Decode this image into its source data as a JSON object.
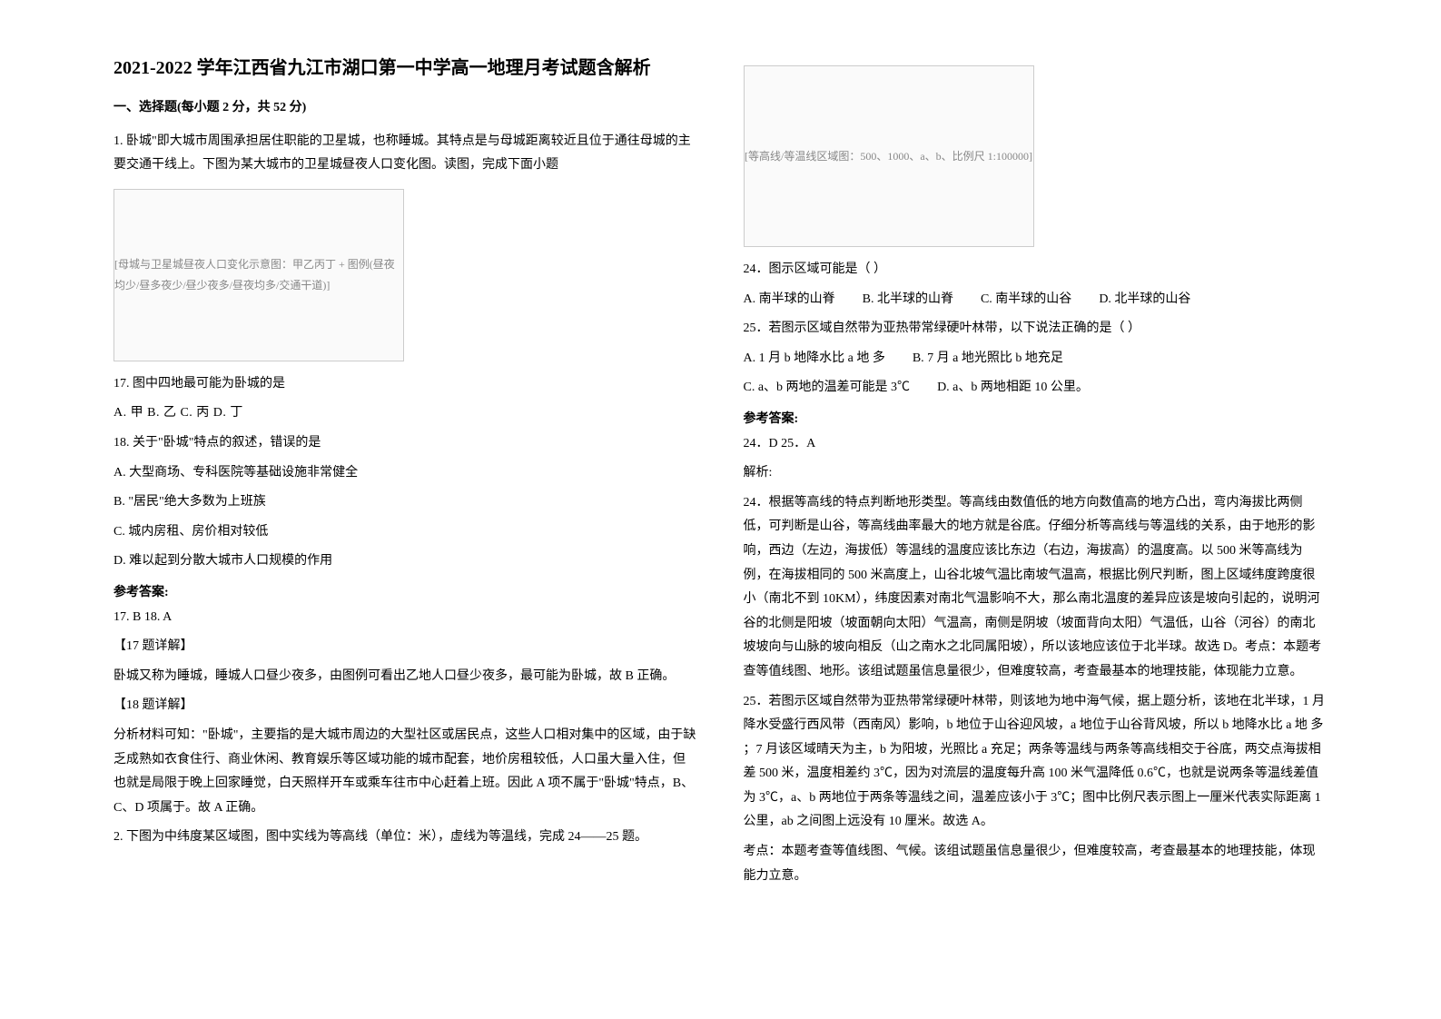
{
  "left": {
    "title": "2021-2022 学年江西省九江市湖口第一中学高一地理月考试题含解析",
    "section1_header": "一、选择题(每小题 2 分，共 52 分)",
    "q1_intro": "1. 卧城\"即大城市周围承担居住职能的卫星城，也称睡城。其特点是与母城距离较近且位于通往母城的主要交通干线上。下图为某大城市的卫星城昼夜人口变化图。读图，完成下面小题",
    "fig1_label": "[母城与卫星城昼夜人口变化示意图：甲乙丙丁 + 图例(昼夜均少/昼多夜少/昼少夜多/昼夜均多/交通干道)]",
    "q17_stem": "17. 图中四地最可能为卧城的是",
    "q17_options": "A. 甲  B. 乙  C. 丙  D. 丁",
    "q18_stem": "18. 关于\"卧城\"特点的叙述，错误的是",
    "q18_a": "A. 大型商场、专科医院等基础设施非常健全",
    "q18_b": "B. \"居民\"绝大多数为上班族",
    "q18_c": "C. 城内房租、房价相对较低",
    "q18_d": "D. 难以起到分散大城市人口规模的作用",
    "ref_ans_label": "参考答案:",
    "ans_17_18": "17. B        18. A",
    "exp17_label": "【17 题详解】",
    "exp17_text": "卧城又称为睡城，睡城人口昼少夜多，由图例可看出乙地人口昼少夜多，最可能为卧城，故 B 正确。",
    "exp18_label": "【18 题详解】",
    "exp18_text": "分析材料可知：\"卧城\"，主要指的是大城市周边的大型社区或居民点，这些人口相对集中的区域，由于缺乏成熟如衣食住行、商业休闲、教育娱乐等区域功能的城市配套，地价房租较低，人口虽大量入住，但也就是局限于晚上回家睡觉，白天照样开车或乘车往市中心赶着上班。因此 A 项不属于\"卧城\"特点，B、C、D 项属于。故 A 正确。",
    "q2_intro": "2. 下图为中纬度某区域图，图中实线为等高线（单位：米），虚线为等温线，完成 24——25 题。"
  },
  "right": {
    "fig2_label": "[等高线/等温线区域图：500、1000、a、b、比例尺 1:100000]",
    "q24_stem": "24．图示区域可能是（      ）",
    "q24_a": "A. 南半球的山脊",
    "q24_b": "B. 北半球的山脊",
    "q24_c": "C. 南半球的山谷",
    "q24_d": "D. 北半球的山谷",
    "q25_stem": "25．若图示区域自然带为亚热带常绿硬叶林带，以下说法正确的是（      ）",
    "q25_a": "A. 1 月 b 地降水比 a 地 多",
    "q25_b": "B. 7 月 a 地光照比 b 地充足",
    "q25_c": "C. a、b 两地的温差可能是 3℃",
    "q25_d": "D. a、b 两地相距 10 公里。",
    "ref_ans_label": "参考答案:",
    "ans_24_25": "24．D       25．A",
    "jiexi_label": "解析:",
    "exp24_text": "24．根据等高线的特点判断地形类型。等高线由数值低的地方向数值高的地方凸出，弯内海拔比两侧低，可判断是山谷，等高线曲率最大的地方就是谷底。仔细分析等高线与等温线的关系，由于地形的影响，西边（左边，海拔低）等温线的温度应该比东边（右边，海拔高）的温度高。以 500 米等高线为例，在海拔相同的 500 米高度上，山谷北坡气温比南坡气温高，根据比例尺判断，图上区域纬度跨度很小（南北不到 10KM），纬度因素对南北气温影响不大，那么南北温度的差异应该是坡向引起的，说明河谷的北侧是阳坡（坡面朝向太阳）气温高，南侧是阴坡（坡面背向太阳）气温低，山谷（河谷）的南北坡坡向与山脉的坡向相反（山之南水之北同属阳坡），所以该地应该位于北半球。故选 D。考点：本题考查等值线图、地形。该组试题虽信息量很少，但难度较高，考查最基本的地理技能，体现能力立意。",
    "exp25_text": "25．若图示区域自然带为亚热带常绿硬叶林带，则该地为地中海气候，据上题分析，该地在北半球，1 月降水受盛行西风带（西南风）影响，b 地位于山谷迎风坡，a 地位于山谷背风坡，所以 b 地降水比 a 地 多 ；7 月该区域晴天为主，b 为阳坡，光照比 a 充足；两条等温线与两条等高线相交于谷底，两交点海拔相差 500 米，温度相差约 3℃，因为对流层的温度每升高 100 米气温降低 0.6℃，也就是说两条等温线差值为 3℃，a、b 两地位于两条等温线之间，温差应该小于 3℃；图中比例尺表示图上一厘米代表实际距离 1 公里，ab 之间图上远没有 10 厘米。故选 A。",
    "kaodian_text": "考点：本题考查等值线图、气候。该组试题虽信息量很少，但难度较高，考查最基本的地理技能，体现能力立意。"
  }
}
